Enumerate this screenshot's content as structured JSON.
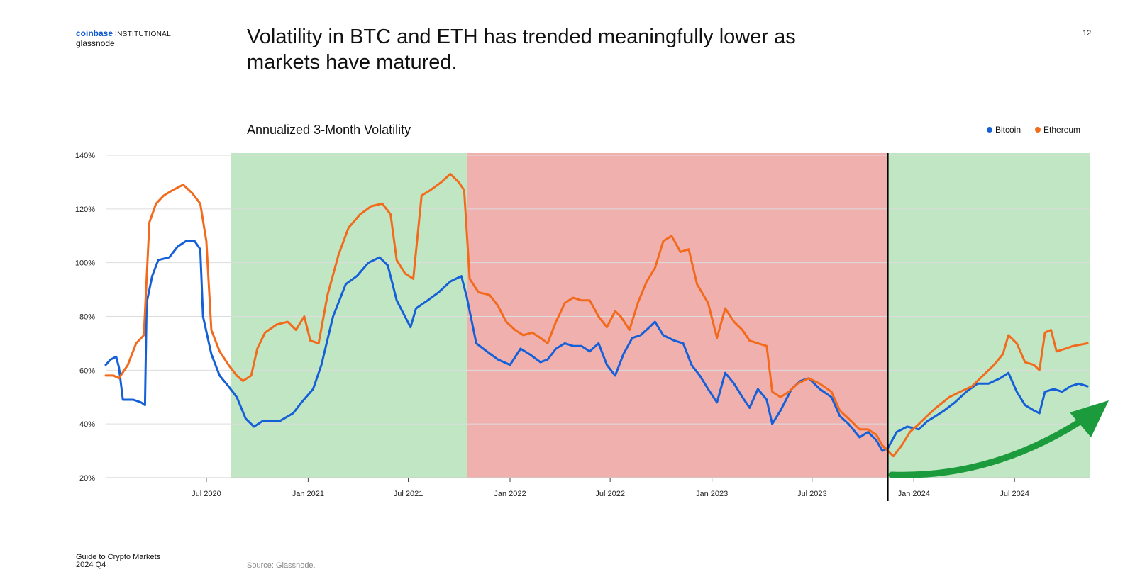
{
  "brand": {
    "name": "coinbase",
    "division": "INSTITUTIONAL",
    "partner": "glassnode"
  },
  "headline": "Volatility in BTC and ETH has trended meaningfully lower as markets have matured.",
  "page_number": "12",
  "footer": {
    "line1": "Guide to Crypto Markets",
    "line2": "2024 Q4"
  },
  "source": "Source: Glassnode.",
  "colors": {
    "bitcoin": "#1560d8",
    "ethereum": "#f26b1d",
    "low_vol_band": "#c0e6c3",
    "high_vol_band": "#f0b0ae",
    "arrow": "#1c9b3c",
    "divider": "#000000",
    "grid": "#dddddd"
  },
  "chart_data": {
    "type": "line",
    "title": "Annualized 3-Month Volatility",
    "xlabel": "",
    "ylabel": "",
    "ylim": [
      20,
      140
    ],
    "yticks": [
      20,
      40,
      60,
      80,
      100,
      120,
      140
    ],
    "ytick_labels": [
      "20%",
      "40%",
      "60%",
      "80%",
      "100%",
      "120%",
      "140%"
    ],
    "xlim": [
      "2020-01-01",
      "2024-11-15"
    ],
    "xticks": [
      "2020-07-01",
      "2021-01-01",
      "2021-07-01",
      "2022-01-01",
      "2022-07-01",
      "2023-01-01",
      "2023-07-01",
      "2024-01-01",
      "2024-07-01"
    ],
    "xtick_labels": [
      "Jul 2020",
      "Jan 2021",
      "Jul 2021",
      "Jan 2022",
      "Jul 2022",
      "Jan 2023",
      "Jul 2023",
      "Jan 2024",
      "Jul 2024"
    ],
    "grid": true,
    "legend_position": "top-right",
    "shaded_regions": [
      {
        "start": "2020-08-15",
        "end": "2021-10-15",
        "regime": "low"
      },
      {
        "start": "2021-10-15",
        "end": "2023-11-15",
        "regime": "high"
      },
      {
        "start": "2023-11-15",
        "end": "2024-11-15",
        "regime": "low"
      }
    ],
    "vertical_line": "2023-11-15",
    "series": [
      {
        "name": "Bitcoin",
        "color": "#1560d8",
        "points": [
          [
            "2020-01-01",
            62
          ],
          [
            "2020-01-10",
            64
          ],
          [
            "2020-01-20",
            65
          ],
          [
            "2020-01-25",
            61
          ],
          [
            "2020-02-01",
            49
          ],
          [
            "2020-02-20",
            49
          ],
          [
            "2020-03-05",
            48
          ],
          [
            "2020-03-12",
            47
          ],
          [
            "2020-03-15",
            85
          ],
          [
            "2020-03-25",
            95
          ],
          [
            "2020-04-05",
            101
          ],
          [
            "2020-04-25",
            102
          ],
          [
            "2020-05-10",
            106
          ],
          [
            "2020-05-25",
            108
          ],
          [
            "2020-06-10",
            108
          ],
          [
            "2020-06-20",
            105
          ],
          [
            "2020-06-25",
            80
          ],
          [
            "2020-07-10",
            66
          ],
          [
            "2020-07-25",
            58
          ],
          [
            "2020-08-10",
            54
          ],
          [
            "2020-08-25",
            50
          ],
          [
            "2020-09-10",
            42
          ],
          [
            "2020-09-25",
            39
          ],
          [
            "2020-10-10",
            41
          ],
          [
            "2020-11-10",
            41
          ],
          [
            "2020-12-05",
            44
          ],
          [
            "2020-12-20",
            48
          ],
          [
            "2021-01-10",
            53
          ],
          [
            "2021-01-25",
            62
          ],
          [
            "2021-02-15",
            80
          ],
          [
            "2021-03-10",
            92
          ],
          [
            "2021-03-30",
            95
          ],
          [
            "2021-04-20",
            100
          ],
          [
            "2021-05-10",
            102
          ],
          [
            "2021-05-25",
            99
          ],
          [
            "2021-06-10",
            86
          ],
          [
            "2021-06-25",
            80
          ],
          [
            "2021-07-05",
            76
          ],
          [
            "2021-07-15",
            83
          ],
          [
            "2021-08-05",
            86
          ],
          [
            "2021-08-25",
            89
          ],
          [
            "2021-09-15",
            93
          ],
          [
            "2021-10-05",
            95
          ],
          [
            "2021-10-15",
            87
          ],
          [
            "2021-11-01",
            70
          ],
          [
            "2021-11-20",
            67
          ],
          [
            "2021-12-10",
            64
          ],
          [
            "2022-01-01",
            62
          ],
          [
            "2022-01-20",
            68
          ],
          [
            "2022-02-05",
            66
          ],
          [
            "2022-02-25",
            63
          ],
          [
            "2022-03-10",
            64
          ],
          [
            "2022-03-25",
            68
          ],
          [
            "2022-04-10",
            70
          ],
          [
            "2022-04-25",
            69
          ],
          [
            "2022-05-10",
            69
          ],
          [
            "2022-05-25",
            67
          ],
          [
            "2022-06-10",
            70
          ],
          [
            "2022-06-25",
            62
          ],
          [
            "2022-07-10",
            58
          ],
          [
            "2022-07-25",
            66
          ],
          [
            "2022-08-10",
            72
          ],
          [
            "2022-08-25",
            73
          ],
          [
            "2022-09-10",
            76
          ],
          [
            "2022-09-20",
            78
          ],
          [
            "2022-10-05",
            73
          ],
          [
            "2022-10-25",
            71
          ],
          [
            "2022-11-10",
            70
          ],
          [
            "2022-11-25",
            62
          ],
          [
            "2022-12-10",
            58
          ],
          [
            "2022-12-25",
            53
          ],
          [
            "2023-01-10",
            48
          ],
          [
            "2023-01-25",
            59
          ],
          [
            "2023-02-10",
            55
          ],
          [
            "2023-02-25",
            50
          ],
          [
            "2023-03-10",
            46
          ],
          [
            "2023-03-25",
            53
          ],
          [
            "2023-04-10",
            49
          ],
          [
            "2023-04-20",
            40
          ],
          [
            "2023-05-05",
            45
          ],
          [
            "2023-05-25",
            53
          ],
          [
            "2023-06-10",
            56
          ],
          [
            "2023-06-25",
            57
          ],
          [
            "2023-07-15",
            53
          ],
          [
            "2023-08-05",
            50
          ],
          [
            "2023-08-20",
            43
          ],
          [
            "2023-09-05",
            40
          ],
          [
            "2023-09-25",
            35
          ],
          [
            "2023-10-10",
            37
          ],
          [
            "2023-10-25",
            34
          ],
          [
            "2023-11-05",
            30
          ],
          [
            "2023-11-15",
            31
          ],
          [
            "2023-12-01",
            37
          ],
          [
            "2023-12-20",
            39
          ],
          [
            "2024-01-10",
            38
          ],
          [
            "2024-01-25",
            41
          ],
          [
            "2024-02-10",
            43
          ],
          [
            "2024-02-25",
            45
          ],
          [
            "2024-03-15",
            48
          ],
          [
            "2024-04-05",
            52
          ],
          [
            "2024-04-25",
            55
          ],
          [
            "2024-05-15",
            55
          ],
          [
            "2024-06-05",
            57
          ],
          [
            "2024-06-20",
            59
          ],
          [
            "2024-07-05",
            52
          ],
          [
            "2024-07-20",
            47
          ],
          [
            "2024-08-05",
            45
          ],
          [
            "2024-08-15",
            44
          ],
          [
            "2024-08-25",
            52
          ],
          [
            "2024-09-10",
            53
          ],
          [
            "2024-09-25",
            52
          ],
          [
            "2024-10-10",
            54
          ],
          [
            "2024-10-25",
            55
          ],
          [
            "2024-11-10",
            54
          ]
        ]
      },
      {
        "name": "Ethereum",
        "color": "#f26b1d",
        "points": [
          [
            "2020-01-01",
            58
          ],
          [
            "2020-01-15",
            58
          ],
          [
            "2020-01-25",
            57
          ],
          [
            "2020-02-10",
            62
          ],
          [
            "2020-02-25",
            70
          ],
          [
            "2020-03-10",
            73
          ],
          [
            "2020-03-20",
            115
          ],
          [
            "2020-04-01",
            122
          ],
          [
            "2020-04-15",
            125
          ],
          [
            "2020-05-01",
            127
          ],
          [
            "2020-05-20",
            129
          ],
          [
            "2020-06-05",
            126
          ],
          [
            "2020-06-20",
            122
          ],
          [
            "2020-07-01",
            108
          ],
          [
            "2020-07-10",
            75
          ],
          [
            "2020-07-25",
            67
          ],
          [
            "2020-08-10",
            62
          ],
          [
            "2020-08-25",
            58
          ],
          [
            "2020-09-05",
            56
          ],
          [
            "2020-09-20",
            58
          ],
          [
            "2020-10-01",
            68
          ],
          [
            "2020-10-15",
            74
          ],
          [
            "2020-11-05",
            77
          ],
          [
            "2020-11-25",
            78
          ],
          [
            "2020-12-10",
            75
          ],
          [
            "2020-12-25",
            80
          ],
          [
            "2021-01-05",
            71
          ],
          [
            "2021-01-20",
            70
          ],
          [
            "2021-02-05",
            88
          ],
          [
            "2021-02-25",
            103
          ],
          [
            "2021-03-15",
            113
          ],
          [
            "2021-04-05",
            118
          ],
          [
            "2021-04-25",
            121
          ],
          [
            "2021-05-15",
            122
          ],
          [
            "2021-05-30",
            118
          ],
          [
            "2021-06-10",
            101
          ],
          [
            "2021-06-25",
            96
          ],
          [
            "2021-07-10",
            94
          ],
          [
            "2021-07-25",
            125
          ],
          [
            "2021-08-10",
            127
          ],
          [
            "2021-08-30",
            130
          ],
          [
            "2021-09-15",
            133
          ],
          [
            "2021-09-30",
            130
          ],
          [
            "2021-10-10",
            127
          ],
          [
            "2021-10-20",
            94
          ],
          [
            "2021-11-05",
            89
          ],
          [
            "2021-11-25",
            88
          ],
          [
            "2021-12-10",
            84
          ],
          [
            "2021-12-25",
            78
          ],
          [
            "2022-01-10",
            75
          ],
          [
            "2022-01-25",
            73
          ],
          [
            "2022-02-10",
            74
          ],
          [
            "2022-02-25",
            72
          ],
          [
            "2022-03-10",
            70
          ],
          [
            "2022-03-25",
            78
          ],
          [
            "2022-04-10",
            85
          ],
          [
            "2022-04-25",
            87
          ],
          [
            "2022-05-10",
            86
          ],
          [
            "2022-05-25",
            86
          ],
          [
            "2022-06-10",
            80
          ],
          [
            "2022-06-25",
            76
          ],
          [
            "2022-07-10",
            82
          ],
          [
            "2022-07-20",
            80
          ],
          [
            "2022-08-05",
            75
          ],
          [
            "2022-08-20",
            85
          ],
          [
            "2022-09-05",
            93
          ],
          [
            "2022-09-20",
            98
          ],
          [
            "2022-10-05",
            108
          ],
          [
            "2022-10-20",
            110
          ],
          [
            "2022-11-05",
            104
          ],
          [
            "2022-11-20",
            105
          ],
          [
            "2022-12-05",
            92
          ],
          [
            "2022-12-25",
            85
          ],
          [
            "2023-01-10",
            72
          ],
          [
            "2023-01-25",
            83
          ],
          [
            "2023-02-10",
            78
          ],
          [
            "2023-02-25",
            75
          ],
          [
            "2023-03-10",
            71
          ],
          [
            "2023-03-25",
            70
          ],
          [
            "2023-04-10",
            69
          ],
          [
            "2023-04-20",
            52
          ],
          [
            "2023-05-05",
            50
          ],
          [
            "2023-05-20",
            52
          ],
          [
            "2023-06-05",
            55
          ],
          [
            "2023-06-25",
            57
          ],
          [
            "2023-07-15",
            55
          ],
          [
            "2023-08-05",
            52
          ],
          [
            "2023-08-20",
            45
          ],
          [
            "2023-09-05",
            42
          ],
          [
            "2023-09-25",
            38
          ],
          [
            "2023-10-10",
            38
          ],
          [
            "2023-10-25",
            36
          ],
          [
            "2023-11-05",
            32
          ],
          [
            "2023-11-15",
            30
          ],
          [
            "2023-11-25",
            28
          ],
          [
            "2023-12-10",
            32
          ],
          [
            "2023-12-25",
            37
          ],
          [
            "2024-01-10",
            40
          ],
          [
            "2024-01-25",
            43
          ],
          [
            "2024-02-10",
            46
          ],
          [
            "2024-03-05",
            50
          ],
          [
            "2024-03-25",
            52
          ],
          [
            "2024-04-15",
            54
          ],
          [
            "2024-05-05",
            58
          ],
          [
            "2024-05-25",
            62
          ],
          [
            "2024-06-10",
            66
          ],
          [
            "2024-06-20",
            73
          ],
          [
            "2024-07-05",
            70
          ],
          [
            "2024-07-20",
            63
          ],
          [
            "2024-08-05",
            62
          ],
          [
            "2024-08-15",
            60
          ],
          [
            "2024-08-25",
            74
          ],
          [
            "2024-09-05",
            75
          ],
          [
            "2024-09-15",
            67
          ],
          [
            "2024-10-01",
            68
          ],
          [
            "2024-10-15",
            69
          ],
          [
            "2024-11-10",
            70
          ]
        ]
      }
    ]
  }
}
